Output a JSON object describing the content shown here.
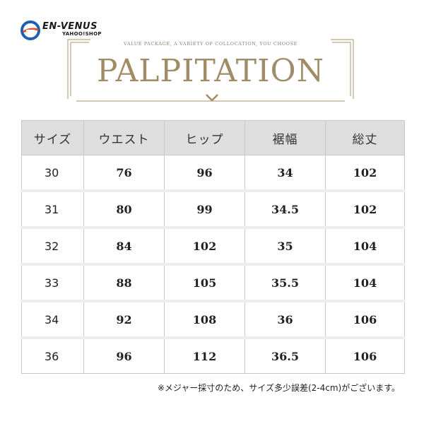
{
  "logo": {
    "name": "EN-VENUS",
    "sub": "YAHOO!SHOP",
    "colors": {
      "blue": "#1f5fb3",
      "orange": "#e8542a"
    }
  },
  "banner": {
    "tagline": "VALUE PACKAGE, A VARIETY OF COLLOCATION, YOU CHOOSE",
    "title": "PALPITATION",
    "accent_color": "#a08c66",
    "icon": "chevron-down-icon"
  },
  "size_table": {
    "headers": [
      "サイズ",
      "ウエスト",
      "ヒップ",
      "裾幅",
      "総丈"
    ],
    "rows": [
      [
        "30",
        "76",
        "96",
        "34",
        "102"
      ],
      [
        "31",
        "80",
        "99",
        "34.5",
        "102"
      ],
      [
        "32",
        "84",
        "102",
        "35",
        "104"
      ],
      [
        "33",
        "88",
        "105",
        "35.5",
        "104"
      ],
      [
        "34",
        "92",
        "108",
        "36",
        "106"
      ],
      [
        "36",
        "96",
        "112",
        "36.5",
        "106"
      ]
    ]
  },
  "note": "※メジャー採寸のため、サイズ多少誤差(2-4cm)がございます。"
}
